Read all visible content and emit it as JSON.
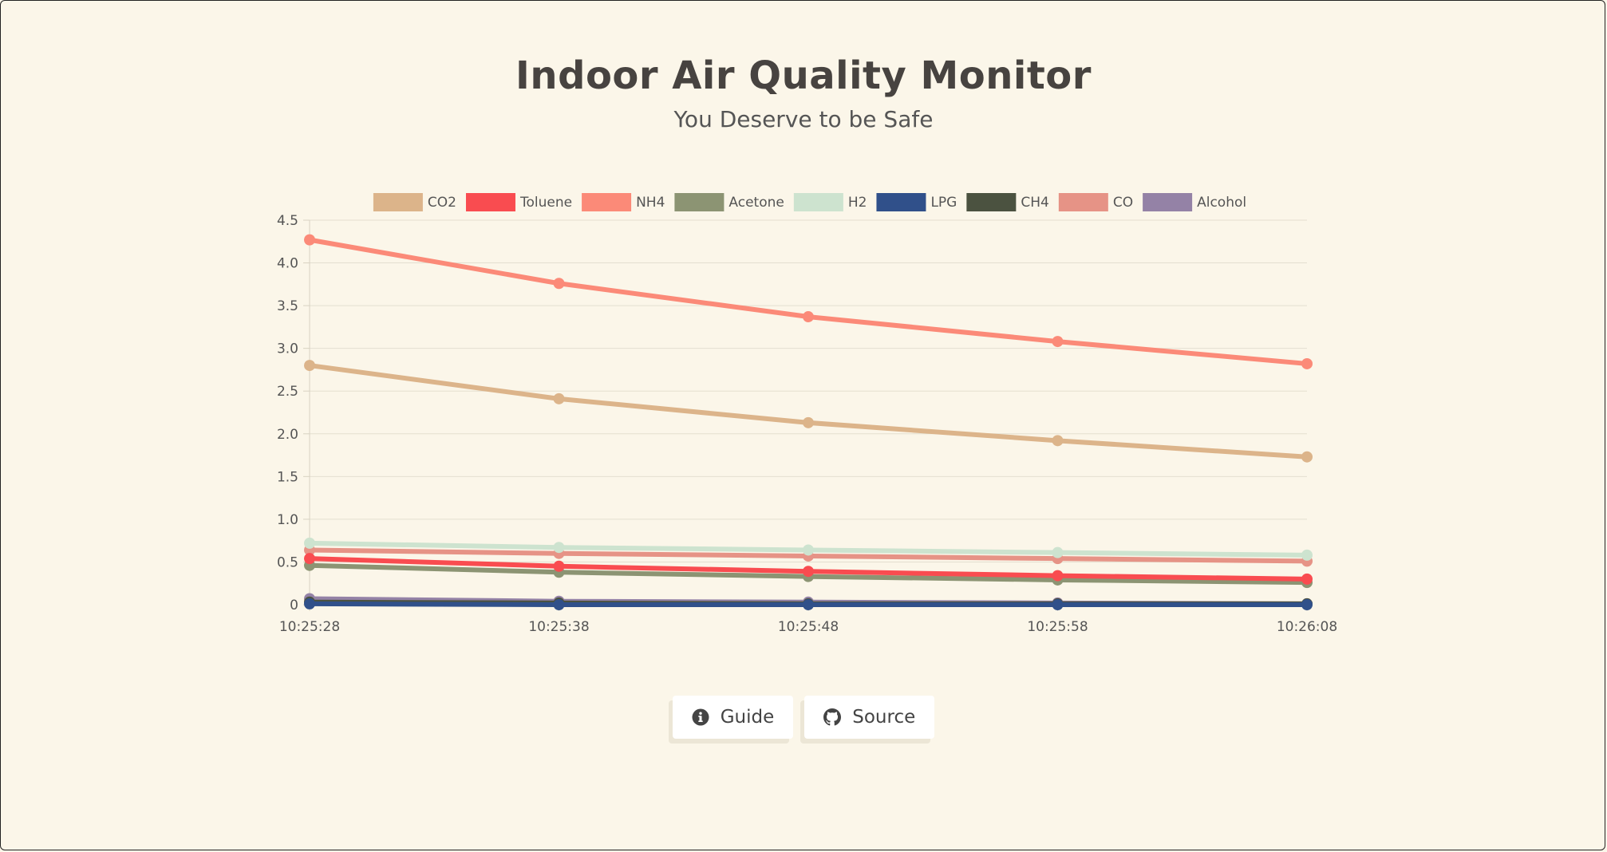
{
  "page": {
    "title": "Indoor Air Quality Monitor",
    "subtitle": "You Deserve to be Safe",
    "background": "#fbf6e9"
  },
  "buttons": {
    "guide": {
      "label": "Guide",
      "icon": "info-circle-icon"
    },
    "source": {
      "label": "Source",
      "icon": "github-icon"
    }
  },
  "chart_data": {
    "type": "line",
    "title": "",
    "xlabel": "",
    "ylabel": "",
    "legend_position": "top",
    "grid": true,
    "ylim": [
      0,
      4.5
    ],
    "yticks": [
      "0",
      "0.5",
      "1.0",
      "1.5",
      "2.0",
      "2.5",
      "3.0",
      "3.5",
      "4.0",
      "4.5"
    ],
    "categories": [
      "10:25:28",
      "10:25:38",
      "10:25:48",
      "10:25:58",
      "10:26:08"
    ],
    "series": [
      {
        "name": "CO2",
        "color": "#dcb48a",
        "values": [
          2.8,
          2.41,
          2.13,
          1.92,
          1.73
        ]
      },
      {
        "name": "Toluene",
        "color": "#f94c50",
        "values": [
          0.54,
          0.45,
          0.39,
          0.34,
          0.3
        ]
      },
      {
        "name": "NH4",
        "color": "#fb8a78",
        "values": [
          4.27,
          3.76,
          3.37,
          3.08,
          2.82
        ]
      },
      {
        "name": "Acetone",
        "color": "#8c9473",
        "values": [
          0.46,
          0.38,
          0.33,
          0.29,
          0.26
        ]
      },
      {
        "name": "H2",
        "color": "#cde3cf",
        "values": [
          0.72,
          0.67,
          0.64,
          0.61,
          0.58
        ]
      },
      {
        "name": "LPG",
        "color": "#30508a",
        "values": [
          0.01,
          0.0,
          0.0,
          0.0,
          0.0
        ]
      },
      {
        "name": "CH4",
        "color": "#4b5240",
        "values": [
          0.03,
          0.02,
          0.01,
          0.01,
          0.01
        ]
      },
      {
        "name": "CO",
        "color": "#e69386",
        "values": [
          0.64,
          0.6,
          0.57,
          0.54,
          0.51
        ]
      },
      {
        "name": "Alcohol",
        "color": "#9482a6",
        "values": [
          0.07,
          0.04,
          0.03,
          0.02,
          0.01
        ]
      }
    ]
  }
}
